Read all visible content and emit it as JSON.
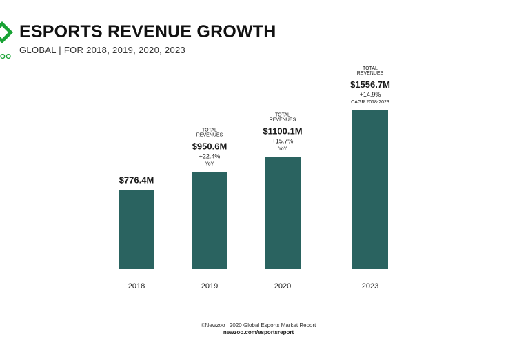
{
  "header": {
    "title": "ESPORTS REVENUE GROWTH",
    "subtitle": "GLOBAL | FOR 2018, 2019, 2020, 2023",
    "logo_text": "OO"
  },
  "colors": {
    "bar": "#2a6360",
    "logo_green": "#19a335"
  },
  "chart_data": {
    "type": "bar",
    "categories": [
      "2018",
      "2019",
      "2020",
      "2023"
    ],
    "values": [
      776.4,
      950.6,
      1100.1,
      1556.7
    ],
    "value_labels": [
      "$776.4M",
      "$950.6M",
      "$1100.1M",
      "$1556.7M"
    ],
    "annotations": [
      {
        "top": "",
        "growth": "",
        "period": ""
      },
      {
        "top": "TOTAL REVENUES",
        "growth": "+22.4%",
        "period": "YoY"
      },
      {
        "top": "TOTAL REVENUES",
        "growth": "+15.7%",
        "period": "YoY"
      },
      {
        "top": "TOTAL REVENUES",
        "growth": "+14.9%",
        "period": "CAGR 2018-2023"
      }
    ],
    "title": "ESPORTS REVENUE GROWTH",
    "xlabel": "",
    "ylabel": "",
    "ylim": [
      0,
      1600
    ],
    "grid": false,
    "legend": "none"
  },
  "footer": {
    "credit": "©Newzoo | 2020 Global Esports Market Report",
    "url": "newzoo.com/esportsreport"
  }
}
